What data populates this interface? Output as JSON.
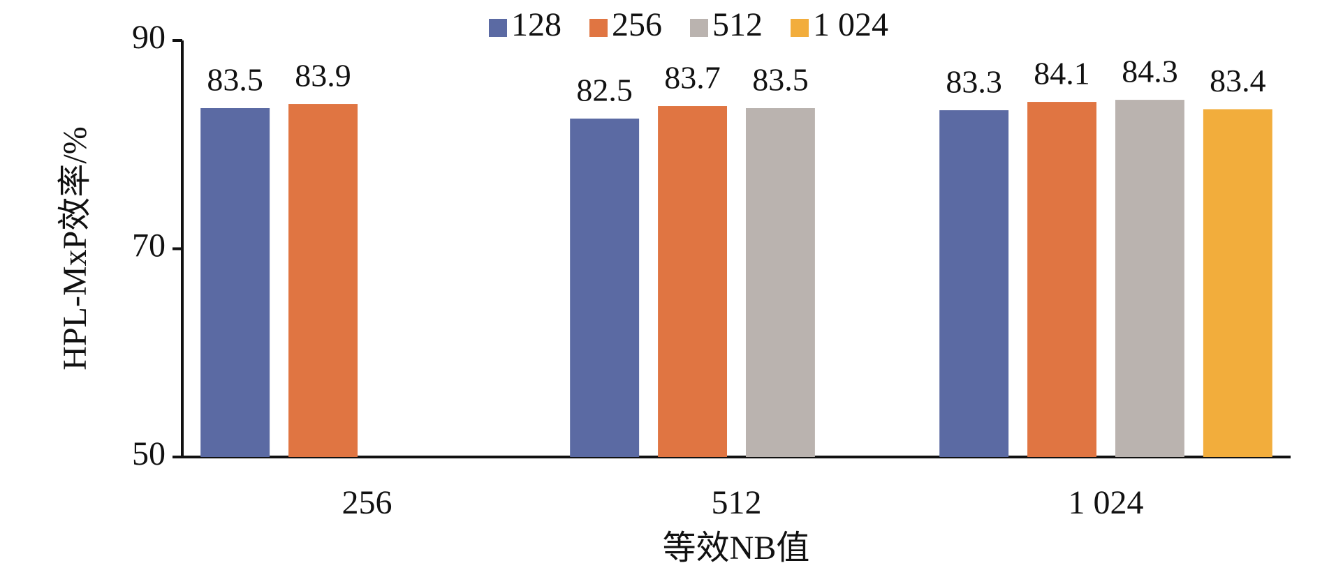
{
  "chart_data": {
    "type": "bar",
    "categories": [
      "256",
      "512",
      "1 024"
    ],
    "series": [
      {
        "name": "128",
        "color": "#5b6aa3",
        "values": [
          83.5,
          82.5,
          83.3
        ]
      },
      {
        "name": "256",
        "color": "#e07542",
        "values": [
          83.9,
          83.7,
          84.1
        ]
      },
      {
        "name": "512",
        "color": "#bab3af",
        "values": [
          null,
          83.5,
          84.3
        ]
      },
      {
        "name": "1 024",
        "color": "#f2ad3c",
        "values": [
          null,
          null,
          83.4
        ]
      }
    ],
    "ylim": [
      50,
      90
    ],
    "yticks": [
      50,
      70,
      90
    ],
    "ylabel": "HPL-MxP效率/%",
    "xlabel": "等效NB值",
    "grid": false,
    "legend": "top"
  }
}
